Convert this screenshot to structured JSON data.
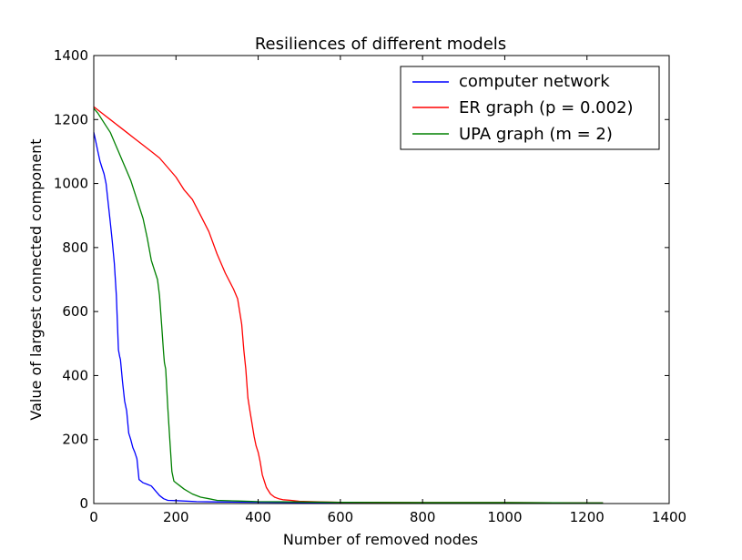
{
  "chart_data": {
    "type": "line",
    "title": "Resiliences of different models",
    "xlabel": "Number of removed nodes",
    "ylabel": "Value of largest connected component",
    "xlim": [
      0,
      1400
    ],
    "ylim": [
      0,
      1400
    ],
    "xticks": [
      0,
      200,
      400,
      600,
      800,
      1000,
      1200,
      1400
    ],
    "yticks": [
      0,
      200,
      400,
      600,
      800,
      1000,
      1200,
      1400
    ],
    "xtick_labels": [
      "0",
      "200",
      "400",
      "600",
      "800",
      "1000",
      "1200",
      "1400"
    ],
    "ytick_labels": [
      "0",
      "200",
      "400",
      "600",
      "800",
      "1000",
      "1200",
      "1400"
    ],
    "grid": false,
    "legend_position": "top-right",
    "series": [
      {
        "name": "computer network",
        "color": "#0000ff",
        "x": [
          0,
          5,
          10,
          15,
          20,
          25,
          30,
          35,
          40,
          45,
          50,
          55,
          60,
          63,
          65,
          70,
          75,
          80,
          85,
          90,
          95,
          100,
          105,
          110,
          115,
          120,
          130,
          140,
          150,
          160,
          170,
          180,
          200,
          250,
          300,
          400,
          500,
          600,
          800,
          1000,
          1200,
          1239
        ],
        "y": [
          1160,
          1130,
          1100,
          1070,
          1050,
          1030,
          1000,
          940,
          880,
          820,
          750,
          650,
          480,
          460,
          450,
          380,
          320,
          290,
          220,
          200,
          175,
          160,
          140,
          75,
          70,
          65,
          60,
          55,
          40,
          25,
          15,
          10,
          9,
          6,
          5,
          4,
          3,
          3,
          2,
          2,
          2,
          2
        ]
      },
      {
        "name": "ER graph (p = 0.002)",
        "color": "#ff0000",
        "x": [
          0,
          20,
          40,
          60,
          80,
          100,
          120,
          140,
          160,
          180,
          200,
          220,
          240,
          260,
          280,
          300,
          320,
          340,
          350,
          360,
          365,
          370,
          375,
          380,
          385,
          390,
          395,
          400,
          405,
          410,
          420,
          430,
          440,
          450,
          460,
          480,
          500,
          550,
          600,
          800,
          1000,
          1200,
          1239
        ],
        "y": [
          1240,
          1220,
          1200,
          1180,
          1160,
          1140,
          1120,
          1100,
          1080,
          1050,
          1020,
          980,
          950,
          900,
          850,
          780,
          720,
          670,
          640,
          560,
          480,
          420,
          330,
          290,
          250,
          210,
          180,
          160,
          130,
          90,
          50,
          30,
          20,
          15,
          12,
          10,
          7,
          5,
          4,
          3,
          3,
          2,
          2
        ]
      },
      {
        "name": "UPA graph (m = 2)",
        "color": "#008000",
        "x": [
          0,
          10,
          20,
          30,
          40,
          50,
          60,
          70,
          80,
          90,
          100,
          110,
          120,
          130,
          140,
          150,
          155,
          160,
          165,
          170,
          172,
          175,
          180,
          185,
          190,
          195,
          200,
          210,
          220,
          240,
          260,
          280,
          300,
          350,
          400,
          500,
          600,
          800,
          1000,
          1200,
          1239
        ],
        "y": [
          1235,
          1220,
          1200,
          1180,
          1160,
          1130,
          1100,
          1070,
          1040,
          1010,
          970,
          930,
          890,
          830,
          760,
          720,
          700,
          650,
          560,
          470,
          440,
          420,
          300,
          200,
          100,
          70,
          65,
          55,
          45,
          30,
          20,
          15,
          10,
          8,
          6,
          5,
          4,
          3,
          3,
          2,
          2
        ]
      }
    ]
  }
}
